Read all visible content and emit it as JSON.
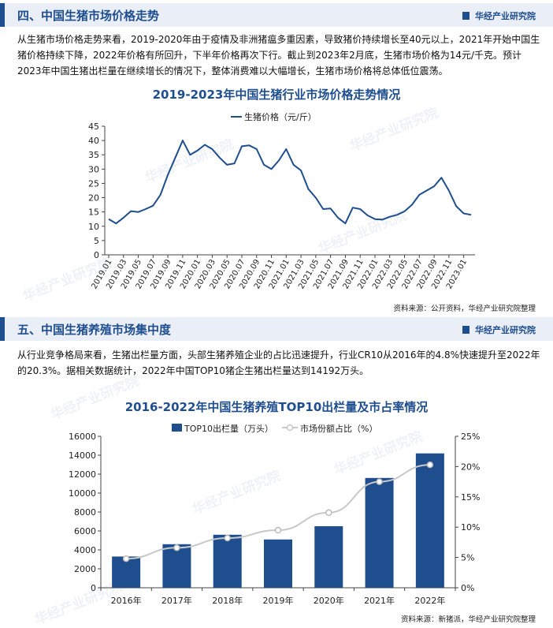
{
  "watermark": "华经产业研究院",
  "section1": {
    "title": "四、中国生猪市场价格走势",
    "brand": "华经产业研究院",
    "paragraph": "从生猪市场价格走势来看，2019-2020年由于疫情及非洲猪瘟多重因素，导致猪价持续增长至40元以上，2021年开始中国生猪价格持续下降，2022年价格有所回升，下半年价格再次下行。截止到2023年2月底，生猪市场价格为14元/千克。预计2023年中国生猪出栏量在继续增长的情况下，整体消费难以大幅增长，生猪市场价格将总体低位震荡。",
    "source": "资料来源：公开资料，华经产业研究院整理"
  },
  "section2": {
    "title": "五、中国生猪养殖市场集中度",
    "brand": "华经产业研究院",
    "paragraph": "从行业竞争格局来看，生猪出栏量方面，头部生猪养殖企业的占比迅速提升，行业CR10从2016年的4.8%快速提升至2022年的20.3%。据相关数据统计，2022年中国TOP10猪企生猪出栏量达到14192万头。",
    "source": "资料来源：新猪派，华经产业研究院整理"
  },
  "chart_data": [
    {
      "type": "line",
      "title": "2019-2023年中国生猪行业市场价格走势情况",
      "legend_position": "top",
      "series": [
        {
          "name": "生猪价格（元/斤）",
          "color": "#1f4e8f",
          "values": [
            12.5,
            11.0,
            13.0,
            15.3,
            15.0,
            16.0,
            17.2,
            21.0,
            28.0,
            34.0,
            40.0,
            35.0,
            36.5,
            38.5,
            37.0,
            34.0,
            31.5,
            32.0,
            38.0,
            38.3,
            37.0,
            31.5,
            30.0,
            33.0,
            37.0,
            31.5,
            29.5,
            23.0,
            20.0,
            16.0,
            16.2,
            13.0,
            11.0,
            16.5,
            16.0,
            13.8,
            12.5,
            12.3,
            13.3,
            14.0,
            15.2,
            17.5,
            21.0,
            22.5,
            24.0,
            27.0,
            22.5,
            17.0,
            14.5,
            14.0
          ]
        }
      ],
      "x_tick_labels": [
        "2019.01",
        "2019.03",
        "2019.05",
        "2019.07",
        "2019.09",
        "2019.11",
        "2020.01",
        "2020.03",
        "2020.05",
        "2020.07",
        "2020.09",
        "2020.11",
        "2021.01",
        "2021.03",
        "2021.05",
        "2021.07",
        "2021.09",
        "2021.11",
        "2022.01",
        "2022.03",
        "2022.05",
        "2022.07",
        "2022.09",
        "2022.11",
        "2023.01"
      ],
      "ylim": [
        0,
        45
      ],
      "y_ticks": [
        0,
        5,
        10,
        15,
        20,
        25,
        30,
        35,
        40,
        45
      ],
      "grid": false
    },
    {
      "type": "bar",
      "title": "2016-2022年中国生猪养殖TOP10出栏量及市占率情况",
      "legend_position": "top",
      "categories": [
        "2016年",
        "2017年",
        "2018年",
        "2019年",
        "2020年",
        "2021年",
        "2022年"
      ],
      "series": [
        {
          "name": "TOP10出栏量（万头）",
          "type": "bar",
          "color": "#1f4e8f",
          "axis": "left",
          "values": [
            3300,
            4600,
            5600,
            5100,
            6500,
            11600,
            14192
          ]
        },
        {
          "name": "市场份额占比（%）",
          "type": "line",
          "color": "#c8c8c8",
          "axis": "right",
          "values": [
            4.8,
            6.6,
            8.2,
            9.5,
            12.4,
            17.5,
            20.3
          ]
        }
      ],
      "y_left": {
        "lim": [
          0,
          16000
        ],
        "ticks": [
          "0",
          "2000",
          "4000",
          "6000",
          "8000",
          "10000",
          "12000",
          "14000",
          "16000"
        ]
      },
      "y_right": {
        "lim": [
          0,
          25
        ],
        "ticks": [
          "0%",
          "5%",
          "10%",
          "15%",
          "20%",
          "25%"
        ]
      },
      "grid": false
    }
  ]
}
